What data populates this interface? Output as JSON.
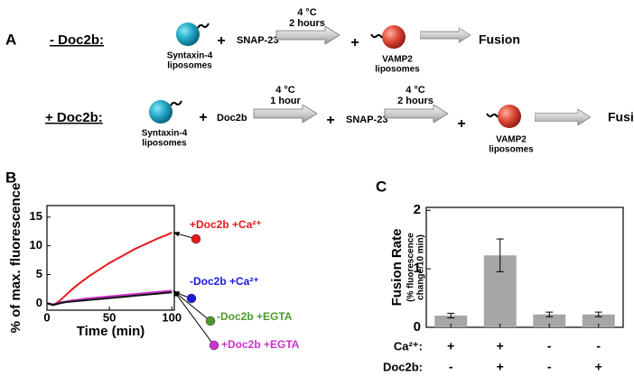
{
  "panels": [
    "A",
    "B",
    "C"
  ],
  "diagram": {
    "row1": {
      "label": "- Doc2b:",
      "syntaxin": [
        "Syntaxin-4",
        "liposomes"
      ],
      "plus1": "+",
      "snap": "SNAP-23",
      "step1": [
        "4 °C",
        "2 hours"
      ],
      "plus2": "+",
      "vamp": [
        "VAMP2",
        "liposomes"
      ],
      "result": "Fusion"
    },
    "row2": {
      "label": "+ Doc2b:",
      "syntaxin": [
        "Syntaxin-4",
        "liposomes"
      ],
      "plus1": "+",
      "doc2b": "Doc2b",
      "step1": [
        "4 °C",
        "1 hour"
      ],
      "plus2": "+",
      "snap": "SNAP-23",
      "step2": [
        "4 °C",
        "2 hours"
      ],
      "plus3": "+",
      "vamp": [
        "VAMP2",
        "liposomes"
      ],
      "result": "Fusion"
    }
  },
  "chart_data": [
    {
      "type": "line",
      "xlabel": "Time (min)",
      "ylabel": "% of max. fluorescence",
      "x": [
        0,
        5,
        10,
        15,
        20,
        25,
        30,
        35,
        40,
        45,
        50,
        55,
        60,
        65,
        70,
        75,
        80,
        85,
        90,
        95,
        100
      ],
      "xlim": [
        0,
        102
      ],
      "ylim": [
        -1.2,
        17
      ],
      "xticks": [
        0,
        50,
        100
      ],
      "yticks": [
        0,
        5,
        10,
        15
      ],
      "series": [
        {
          "name": "+Doc2b +Ca²⁺",
          "color": "#e8171c",
          "values": [
            0,
            -0.3,
            0.4,
            1.4,
            2.4,
            3.3,
            4.1,
            4.9,
            5.6,
            6.3,
            7.0,
            7.6,
            8.2,
            8.8,
            9.4,
            9.9,
            10.4,
            10.9,
            11.4,
            11.8,
            12.3
          ]
        },
        {
          "name": "-Doc2b +Ca²⁺",
          "color": "#1a1adb",
          "values": [
            0,
            -0.3,
            0,
            0.2,
            0.4,
            0.5,
            0.6,
            0.7,
            0.8,
            0.9,
            1.0,
            1.1,
            1.2,
            1.3,
            1.4,
            1.5,
            1.6,
            1.7,
            1.8,
            1.9,
            2.0
          ]
        },
        {
          "name": "-Doc2b +EGTA",
          "color": "#4d9a2a",
          "values": [
            0,
            -0.2,
            0.1,
            0.3,
            0.5,
            0.6,
            0.7,
            0.8,
            0.9,
            1.0,
            1.1,
            1.2,
            1.3,
            1.4,
            1.5,
            1.6,
            1.7,
            1.8,
            1.9,
            2.0,
            2.1
          ]
        },
        {
          "name": "+Doc2b +EGTA",
          "color": "#cc33cc",
          "values": [
            0,
            -0.2,
            0.1,
            0.3,
            0.5,
            0.6,
            0.8,
            0.9,
            1.0,
            1.1,
            1.2,
            1.3,
            1.4,
            1.5,
            1.6,
            1.7,
            1.8,
            1.9,
            2.0,
            2.1,
            2.2
          ]
        },
        {
          "color": "#111111",
          "values": [
            0,
            -0.3,
            0,
            0.2,
            0.3,
            0.4,
            0.5,
            0.6,
            0.7,
            0.8,
            0.9,
            1.0,
            1.1,
            1.2,
            1.3,
            1.4,
            1.5,
            1.6,
            1.7,
            1.8,
            1.9
          ]
        }
      ]
    },
    {
      "type": "bar",
      "ylabel": "Fusion Rate",
      "ylabel_note": [
        "(% fluorescence",
        "change/10 min)"
      ],
      "values": [
        0.2,
        1.23,
        0.22,
        0.22
      ],
      "errors": [
        0.04,
        0.28,
        0.04,
        0.04
      ],
      "color": "#a6a6a6",
      "ylim": [
        0,
        2.05
      ],
      "yticks": [
        0,
        1,
        2
      ],
      "condition_rows": [
        {
          "label": "Ca²⁺:",
          "values": [
            "+",
            "+",
            "-",
            "-"
          ]
        },
        {
          "label": "Doc2b:",
          "values": [
            "-",
            "+",
            "-",
            "+"
          ]
        }
      ]
    }
  ]
}
